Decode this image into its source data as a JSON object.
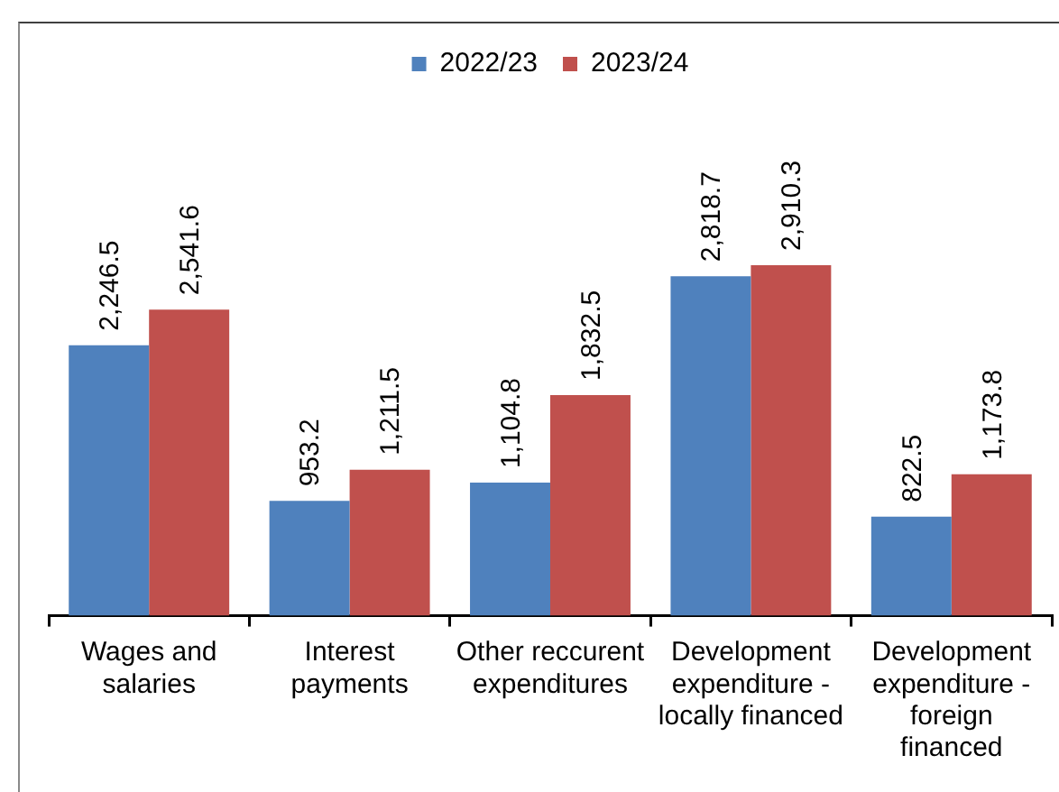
{
  "chart_data": {
    "type": "bar",
    "categories": [
      "Wages and salaries",
      "Interest payments",
      "Other reccurent expenditures",
      "Development expenditure - locally financed",
      "Development expenditure - foreign financed"
    ],
    "series": [
      {
        "name": "2022/23",
        "color": "#4f81bd",
        "values": [
          2246.5,
          953.2,
          1104.8,
          2818.7,
          822.5
        ],
        "value_labels": [
          "2,246.5",
          "953.2",
          "1,104.8",
          "2,818.7",
          "822.5"
        ]
      },
      {
        "name": "2023/24",
        "color": "#c0504d",
        "values": [
          2541.6,
          1211.5,
          1832.5,
          2910.3,
          1173.8
        ],
        "value_labels": [
          "2,541.6",
          "1,211.5",
          "1,832.5",
          "2,910.3",
          "1,173.8"
        ]
      }
    ],
    "tick_labels": "x",
    "legend": "top"
  }
}
